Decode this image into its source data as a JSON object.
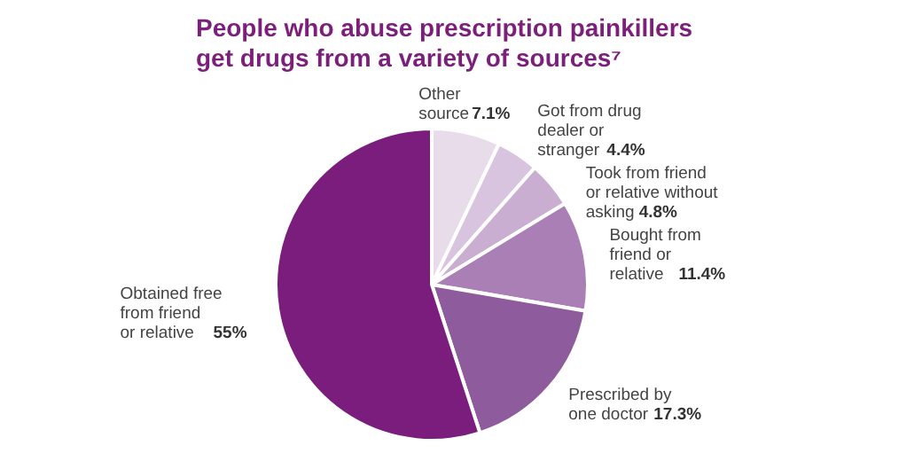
{
  "chart_data": {
    "type": "pie",
    "title": "People who abuse prescription painkillers\nget drugs from a variety of sources⁷",
    "categories": [
      "Other\nsource",
      "Got from drug\ndealer or\nstranger",
      "Took from friend\nor relative without\nasking",
      "Bought from\nfriend or\nrelative",
      "Prescribed by\none doctor",
      "Obtained free\nfrom friend\nor relative"
    ],
    "values": [
      7.1,
      4.4,
      4.8,
      11.4,
      17.3,
      55
    ],
    "value_labels": [
      "7.1%",
      "4.4%",
      "4.8%",
      "11.4%",
      "17.3%",
      "55%"
    ],
    "colors": [
      "#e8dcea",
      "#d8c4de",
      "#c9aed1",
      "#a97fb5",
      "#8e5b9c",
      "#7a1d7c"
    ]
  }
}
